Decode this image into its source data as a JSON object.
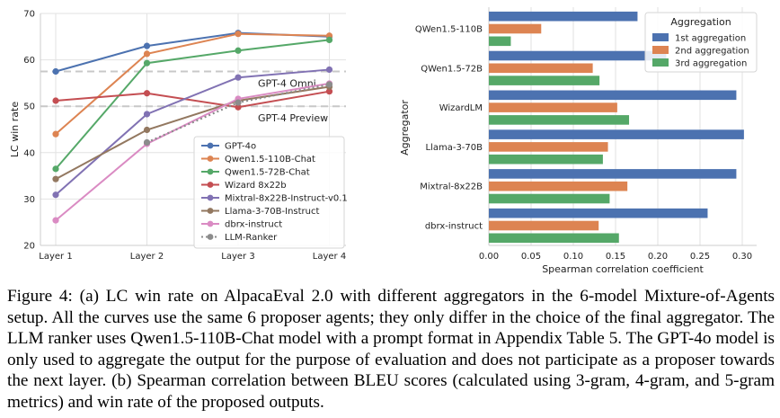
{
  "chart_data": [
    {
      "type": "line",
      "categories": [
        "Layer 1",
        "Layer 2",
        "Layer 3",
        "Layer 4"
      ],
      "ylabel": "LC win rate",
      "ylim": [
        20,
        70
      ],
      "yticks": [
        "20",
        "30",
        "40",
        "50",
        "60",
        "70"
      ],
      "grid": true,
      "legend_placement": "lower-right",
      "series": [
        {
          "name": "GPT-4o",
          "color": "#4c72b0",
          "style": "solid",
          "values": [
            57.5,
            63.0,
            65.8,
            65.0
          ]
        },
        {
          "name": "Qwen1.5-110B-Chat",
          "color": "#dd8452",
          "style": "solid",
          "values": [
            44.0,
            61.3,
            65.6,
            65.2
          ]
        },
        {
          "name": "Qwen1.5-72B-Chat",
          "color": "#55a868",
          "style": "solid",
          "values": [
            36.5,
            59.3,
            62.0,
            64.3
          ]
        },
        {
          "name": "Wizard 8x22b",
          "color": "#c44e52",
          "style": "solid",
          "values": [
            51.2,
            52.8,
            49.8,
            53.2
          ]
        },
        {
          "name": "Mixtral-8x22B-Instruct-v0.1",
          "color": "#8172b3",
          "style": "solid",
          "values": [
            30.9,
            48.3,
            56.2,
            57.9
          ]
        },
        {
          "name": "Llama-3-70B-Instruct",
          "color": "#937860",
          "style": "solid",
          "values": [
            34.3,
            44.9,
            51.2,
            54.2
          ]
        },
        {
          "name": "dbrx-instruct",
          "color": "#da8bc3",
          "style": "solid",
          "values": [
            25.4,
            41.9,
            51.6,
            54.9
          ]
        },
        {
          "name": "LLM-Ranker",
          "color": "#8c8c8c",
          "style": "dotted",
          "values": [
            null,
            42.2,
            50.8,
            54.7
          ]
        }
      ],
      "reference_lines": [
        {
          "label": "GPT-4 Omni",
          "value": 57.5
        },
        {
          "label": "GPT-4 Preview",
          "value": 50.0
        }
      ]
    },
    {
      "type": "bar",
      "orientation": "horizontal",
      "categories": [
        "QWen1.5-110B",
        "QWen1.5-72B",
        "WizardLM",
        "Llama-3-70B",
        "Mixtral-8x22B",
        "dbrx-instruct"
      ],
      "xlabel": "Spearman correlation coefficient",
      "ylabel": "Aggregator",
      "xlim": [
        0,
        0.3
      ],
      "xticks": [
        "0.00",
        "0.05",
        "0.10",
        "0.15",
        "0.20",
        "0.25",
        "0.30"
      ],
      "grid": true,
      "legend_title": "Aggregation",
      "legend_placement": "top-right",
      "series": [
        {
          "name": "1st aggregation",
          "color": "#4c72b0",
          "values": [
            0.176,
            0.21,
            0.293,
            0.302,
            0.293,
            0.259
          ]
        },
        {
          "name": "2nd aggregation",
          "color": "#dd8452",
          "values": [
            0.062,
            0.123,
            0.152,
            0.141,
            0.164,
            0.13
          ]
        },
        {
          "name": "3rd aggregation",
          "color": "#55a868",
          "values": [
            0.026,
            0.131,
            0.166,
            0.135,
            0.143,
            0.154
          ]
        }
      ]
    }
  ],
  "caption": "Figure 4: (a) LC win rate on AlpacaEval 2.0 with different aggregators in the 6-model Mixture-of-Agents setup. All the curves use the same 6 proposer agents; they only differ in the choice of the final aggregator. The LLM ranker uses Qwen1.5-110B-Chat model with a prompt format in Appendix Table 5. The GPT-4o model is only used to aggregate the output for the purpose of evaluation and does not participate as a proposer towards the next layer. (b) Spearman correlation between BLEU scores (calculated using 3-gram, 4-gram, and 5-gram metrics) and win rate of the proposed outputs."
}
